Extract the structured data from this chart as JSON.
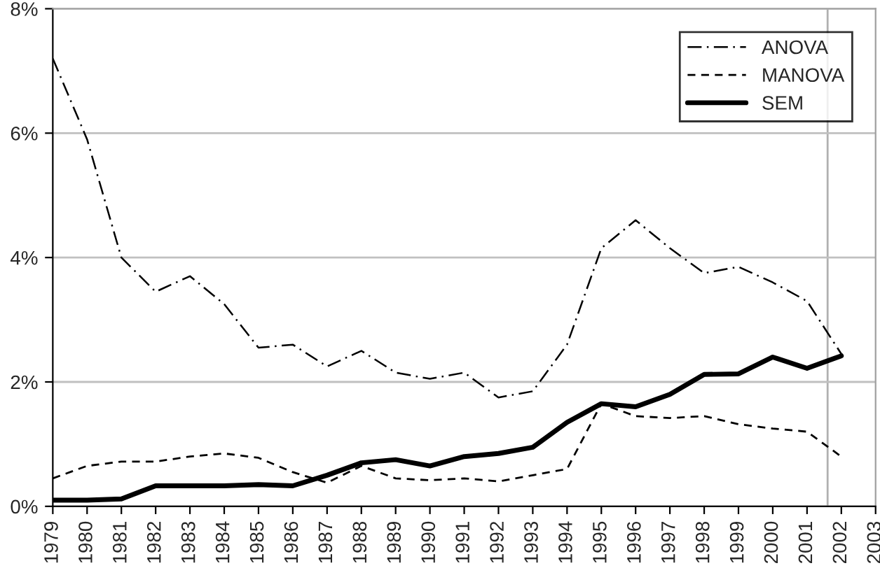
{
  "chart_data": {
    "type": "line",
    "x": [
      1979,
      1980,
      1981,
      1982,
      1983,
      1984,
      1985,
      1986,
      1987,
      1988,
      1989,
      1990,
      1991,
      1992,
      1993,
      1994,
      1995,
      1996,
      1997,
      1998,
      1999,
      2000,
      2001,
      2002
    ],
    "series": [
      {
        "name": "ANOVA",
        "color": "#000000",
        "line_style": "dashdot",
        "values": [
          7.2,
          5.9,
          4.0,
          3.45,
          3.7,
          3.25,
          2.55,
          2.6,
          2.25,
          2.5,
          2.15,
          2.05,
          2.15,
          1.75,
          1.85,
          2.6,
          4.15,
          4.6,
          4.15,
          3.75,
          3.85,
          3.6,
          3.3,
          2.45
        ]
      },
      {
        "name": "MANOVA",
        "color": "#000000",
        "line_style": "dashed",
        "values": [
          0.45,
          0.65,
          0.72,
          0.72,
          0.8,
          0.85,
          0.78,
          0.55,
          0.38,
          0.65,
          0.45,
          0.42,
          0.45,
          0.4,
          0.5,
          0.6,
          1.65,
          1.45,
          1.42,
          1.45,
          1.32,
          1.25,
          1.2,
          0.8
        ]
      },
      {
        "name": "SEM",
        "color": "#000000",
        "line_style": "solid",
        "values": [
          0.1,
          0.1,
          0.12,
          0.33,
          0.33,
          0.33,
          0.35,
          0.33,
          0.5,
          0.7,
          0.75,
          0.65,
          0.8,
          0.85,
          0.95,
          1.35,
          1.65,
          1.6,
          1.8,
          2.12,
          2.13,
          2.4,
          2.22,
          2.42
        ]
      }
    ],
    "xlim": [
      1979,
      2003
    ],
    "xticks": [
      1979,
      1980,
      1981,
      1982,
      1983,
      1984,
      1985,
      1986,
      1987,
      1988,
      1989,
      1990,
      1991,
      1992,
      1993,
      1994,
      1995,
      1996,
      1997,
      1998,
      1999,
      2000,
      2001,
      2002,
      2003
    ],
    "ylim": [
      0,
      8
    ],
    "yticks": [
      {
        "value": 0,
        "label": "0%"
      },
      {
        "value": 2,
        "label": "2%"
      },
      {
        "value": 4,
        "label": "4%"
      },
      {
        "value": 6,
        "label": "6%"
      },
      {
        "value": 8,
        "label": "8%"
      }
    ],
    "ref_lines": [
      {
        "axis": "x",
        "value": 2001.6,
        "label": null,
        "color": "#b0b0b0"
      }
    ],
    "grid": "y",
    "legend": "top right",
    "marker": "none"
  }
}
